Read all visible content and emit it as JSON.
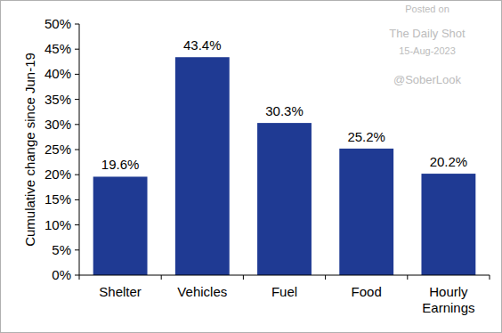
{
  "chart_data": {
    "type": "bar",
    "y_label": "Cumulative change since Jun-19",
    "categories": [
      "Shelter",
      "Vehicles",
      "Fuel",
      "Food",
      "Hourly Earnings"
    ],
    "values": [
      19.6,
      43.4,
      30.3,
      25.2,
      20.2
    ],
    "value_labels": [
      "19.6%",
      "43.4%",
      "30.3%",
      "25.2%",
      "20.2%"
    ],
    "color": "#1f3a93",
    "ylim": [
      0,
      50
    ],
    "yticks": [
      {
        "value": 0,
        "label": "0%"
      },
      {
        "value": 5,
        "label": "5%"
      },
      {
        "value": 10,
        "label": "10%"
      },
      {
        "value": 15,
        "label": "15%"
      },
      {
        "value": 20,
        "label": "20%"
      },
      {
        "value": 25,
        "label": "25%"
      },
      {
        "value": 30,
        "label": "30%"
      },
      {
        "value": 35,
        "label": "35%"
      },
      {
        "value": 40,
        "label": "40%"
      },
      {
        "value": 45,
        "label": "45%"
      },
      {
        "value": 50,
        "label": "50%"
      }
    ],
    "grid": false,
    "data_labels": true,
    "annotations": [
      "Posted on",
      "The Daily Shot",
      "15-Aug-2023",
      "@SoberLook"
    ]
  }
}
